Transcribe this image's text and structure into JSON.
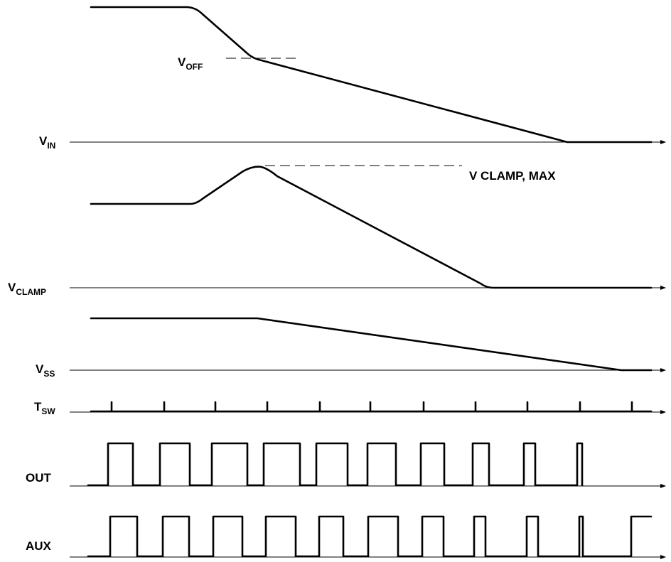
{
  "signals": {
    "vin": {
      "main": "V",
      "sub": "IN"
    },
    "vclamp": {
      "main": "V",
      "sub": "CLAMP"
    },
    "vss": {
      "main": "V",
      "sub": "SS"
    },
    "tsw": {
      "main": "T",
      "sub": "SW"
    },
    "out": {
      "main": "OUT"
    },
    "aux": {
      "main": "AUX"
    }
  },
  "annotations": {
    "voff": {
      "main": "V",
      "sub": "OFF"
    },
    "vclamp_max": "V CLAMP, MAX"
  }
}
